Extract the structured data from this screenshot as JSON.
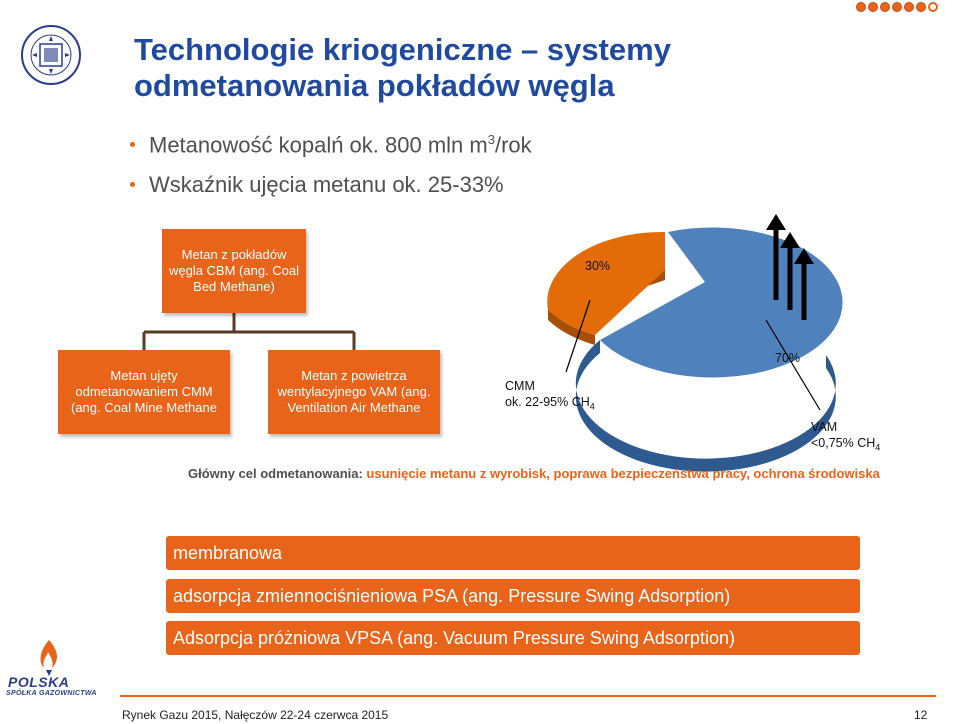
{
  "title": "Technologie kriogeniczne – systemy odmetanowania pokładów węgla",
  "bullets": {
    "b1_pre": "Metanowość kopalń ok. 800 mln m",
    "b1_sup": "3",
    "b1_post": "/rok",
    "b2": "Wskaźnik ujęcia metanu ok. 25-33%"
  },
  "org": {
    "root": "Metan z pokładów węgla CBM (ang. Coal Bed Methane)",
    "left": "Metan ujęty odmetanowaniem CMM (ang. Coal Mine Methane",
    "right": "Metan z powietrza wentylacyjnego VAM (ang. Ventilation Air Methane"
  },
  "pie": {
    "slices": [
      {
        "label": "30%",
        "value": 30,
        "color": "#e36c09"
      },
      {
        "label": "70%",
        "value": 70,
        "color": "#4f81bd"
      }
    ],
    "cmm_label": "CMM",
    "cmm_range_pre": "ok. 22-95% CH",
    "cmm_range_sub": "4",
    "vam_label": "VAM",
    "vam_range_pre": "<0,75% CH",
    "vam_range_sub": "4"
  },
  "goal": {
    "label": "Główny cel odmetanowania: ",
    "text": "usunięcie metanu z wyrobisk, poprawa bezpieczeństwa pracy, ochrona środowiska"
  },
  "methods": [
    "membranowa",
    "adsorpcja zmiennociśnieniowa PSA (ang. Pressure Swing Adsorption)",
    "Adsorpcja próżniowa VPSA (ang. Vacuum Pressure Swing Adsorption)"
  ],
  "psg": {
    "name": "POLSKA",
    "sub": "SPÓŁKA GAZOWNICTWA"
  },
  "footer": {
    "text": "Rynek Gazu 2015, Nałęczów 22-24 czerwca 2015",
    "page": "12"
  },
  "colors": {
    "accent": "#e8641b",
    "title": "#1f4aa0",
    "pie_orange": "#e36c09",
    "pie_blue": "#4f81bd"
  }
}
